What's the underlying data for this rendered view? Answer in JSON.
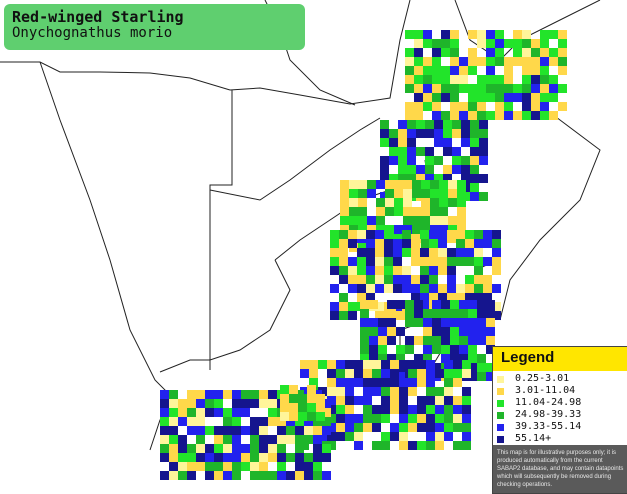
{
  "title": {
    "common_name": "Red-winged Starling",
    "scientific_name": "Onychognathus morio"
  },
  "legend": {
    "heading": "Legend",
    "classes": [
      {
        "label": "0.25-3.01",
        "color": "#fff59a"
      },
      {
        "label": "3.01-11.04",
        "color": "#ffd84a"
      },
      {
        "label": "11.04-24.98",
        "color": "#22e42a"
      },
      {
        "label": "24.98-39.33",
        "color": "#1fb52a"
      },
      {
        "label": "39.33-55.14",
        "color": "#2222ee"
      },
      {
        "label": "55.14+",
        "color": "#15158e"
      }
    ],
    "disclaimer": "This map is for illustrative purposes only; it is produced automatically from the current SABAP2 database, and may contain datapoints which will subsequently be removed during checking operations."
  },
  "colors": {
    "border": "#222222",
    "grid": "#cccccc",
    "title_bg": "#5fcf6f",
    "legend_header": "#ffe600"
  }
}
